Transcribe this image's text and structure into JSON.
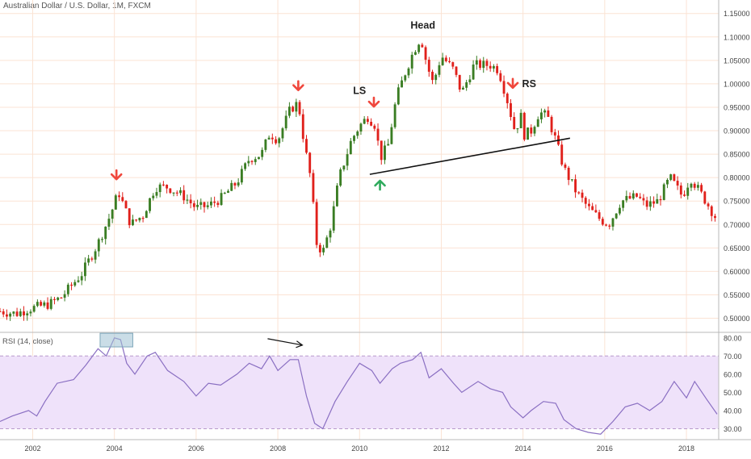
{
  "title": "Australian Dollar / U.S. Dollar, 1M, FXCM",
  "colors": {
    "up": "#3a7d23",
    "down": "#e0201b",
    "grid": "#fbe3d4",
    "rsi_line": "#8a6fc2",
    "rsi_band": "#efe2fa",
    "arrow_down": "#f0473c",
    "arrow_up": "#2eaa5c",
    "rsi_box": "#9fc1d4"
  },
  "chart_data": [
    {
      "type": "candlestick",
      "title": "Australian Dollar / U.S. Dollar, 1M, FXCM",
      "x_tick_labels": [
        "2002",
        "2004",
        "2006",
        "2008",
        "2010",
        "2012",
        "2014",
        "2016",
        "2018"
      ],
      "y_tick_labels": [
        "0.50000",
        "0.55000",
        "0.60000",
        "0.65000",
        "0.70000",
        "0.75000",
        "0.80000",
        "0.85000",
        "0.90000",
        "0.95000",
        "1.00000",
        "1.05000",
        "1.10000",
        "1.15000"
      ],
      "ylim": [
        0.47,
        1.165
      ],
      "xlim": [
        2001.2,
        2018.75
      ],
      "grid": true,
      "ohlc_anchors": [
        {
          "t": 2001.2,
          "c": 0.515
        },
        {
          "t": 2001.6,
          "c": 0.51
        },
        {
          "t": 2001.9,
          "c": 0.52
        },
        {
          "t": 2002.4,
          "c": 0.53
        },
        {
          "t": 2002.7,
          "c": 0.545
        },
        {
          "t": 2003.2,
          "c": 0.595
        },
        {
          "t": 2003.6,
          "c": 0.66
        },
        {
          "t": 2003.9,
          "c": 0.72
        },
        {
          "t": 2004.1,
          "c": 0.77
        },
        {
          "t": 2004.4,
          "c": 0.7
        },
        {
          "t": 2004.7,
          "c": 0.72
        },
        {
          "t": 2005.0,
          "c": 0.78
        },
        {
          "t": 2005.3,
          "c": 0.78
        },
        {
          "t": 2005.7,
          "c": 0.76
        },
        {
          "t": 2006.0,
          "c": 0.735
        },
        {
          "t": 2006.3,
          "c": 0.74
        },
        {
          "t": 2006.6,
          "c": 0.755
        },
        {
          "t": 2007.0,
          "c": 0.79
        },
        {
          "t": 2007.3,
          "c": 0.84
        },
        {
          "t": 2007.6,
          "c": 0.85
        },
        {
          "t": 2007.8,
          "c": 0.895
        },
        {
          "t": 2008.0,
          "c": 0.88
        },
        {
          "t": 2008.3,
          "c": 0.945
        },
        {
          "t": 2008.5,
          "c": 0.96
        },
        {
          "t": 2008.65,
          "c": 0.87
        },
        {
          "t": 2008.8,
          "c": 0.8
        },
        {
          "t": 2008.95,
          "c": 0.66
        },
        {
          "t": 2009.1,
          "c": 0.64
        },
        {
          "t": 2009.3,
          "c": 0.7
        },
        {
          "t": 2009.5,
          "c": 0.8
        },
        {
          "t": 2009.8,
          "c": 0.88
        },
        {
          "t": 2010.0,
          "c": 0.91
        },
        {
          "t": 2010.2,
          "c": 0.93
        },
        {
          "t": 2010.4,
          "c": 0.91
        },
        {
          "t": 2010.5,
          "c": 0.84
        },
        {
          "t": 2010.7,
          "c": 0.87
        },
        {
          "t": 2010.9,
          "c": 0.97
        },
        {
          "t": 2011.1,
          "c": 1.02
        },
        {
          "t": 2011.3,
          "c": 1.065
        },
        {
          "t": 2011.5,
          "c": 1.1
        },
        {
          "t": 2011.65,
          "c": 1.04
        },
        {
          "t": 2011.8,
          "c": 1.0
        },
        {
          "t": 2012.0,
          "c": 1.06
        },
        {
          "t": 2012.3,
          "c": 1.03
        },
        {
          "t": 2012.5,
          "c": 0.98
        },
        {
          "t": 2012.8,
          "c": 1.04
        },
        {
          "t": 2013.2,
          "c": 1.04
        },
        {
          "t": 2013.4,
          "c": 1.03
        },
        {
          "t": 2013.6,
          "c": 0.97
        },
        {
          "t": 2013.8,
          "c": 0.9
        },
        {
          "t": 2013.95,
          "c": 0.93
        },
        {
          "t": 2014.0,
          "c": 0.89
        },
        {
          "t": 2014.2,
          "c": 0.9
        },
        {
          "t": 2014.4,
          "c": 0.94
        },
        {
          "t": 2014.6,
          "c": 0.93
        },
        {
          "t": 2014.8,
          "c": 0.88
        },
        {
          "t": 2015.0,
          "c": 0.82
        },
        {
          "t": 2015.3,
          "c": 0.77
        },
        {
          "t": 2015.6,
          "c": 0.735
        },
        {
          "t": 2015.9,
          "c": 0.71
        },
        {
          "t": 2016.1,
          "c": 0.7
        },
        {
          "t": 2016.4,
          "c": 0.75
        },
        {
          "t": 2016.8,
          "c": 0.76
        },
        {
          "t": 2017.0,
          "c": 0.74
        },
        {
          "t": 2017.3,
          "c": 0.75
        },
        {
          "t": 2017.6,
          "c": 0.8
        },
        {
          "t": 2017.9,
          "c": 0.76
        },
        {
          "t": 2018.1,
          "c": 0.8
        },
        {
          "t": 2018.4,
          "c": 0.76
        },
        {
          "t": 2018.75,
          "c": 0.71
        }
      ],
      "pattern_labels": [
        "LS",
        "Head",
        "RS"
      ],
      "neckline": {
        "from": {
          "t": 2010.25,
          "price": 0.807
        },
        "to": {
          "t": 2015.15,
          "price": 0.884
        }
      },
      "arrows": [
        {
          "t": 2004.05,
          "price": 0.8,
          "direction": "down"
        },
        {
          "t": 2008.5,
          "price": 0.99,
          "direction": "down"
        },
        {
          "t": 2010.35,
          "price": 0.955,
          "direction": "down"
        },
        {
          "t": 2013.75,
          "price": 0.995,
          "direction": "down"
        },
        {
          "t": 2010.5,
          "price": 0.79,
          "direction": "up"
        }
      ]
    },
    {
      "type": "line",
      "title": "RSI (14, close)",
      "y_tick_labels": [
        "30.00",
        "40.00",
        "50.00",
        "60.00",
        "70.00",
        "80.00"
      ],
      "ylim": [
        24,
        83
      ],
      "band": [
        30,
        70
      ],
      "series": [
        {
          "values": [
            [
              2001.2,
              34
            ],
            [
              2001.5,
              37
            ],
            [
              2001.9,
              40
            ],
            [
              2002.1,
              37
            ],
            [
              2002.3,
              45
            ],
            [
              2002.6,
              55
            ],
            [
              2003.0,
              57
            ],
            [
              2003.3,
              65
            ],
            [
              2003.6,
              74
            ],
            [
              2003.8,
              70
            ],
            [
              2004.0,
              80
            ],
            [
              2004.15,
              79
            ],
            [
              2004.3,
              66
            ],
            [
              2004.5,
              60
            ],
            [
              2004.8,
              70
            ],
            [
              2005.0,
              72
            ],
            [
              2005.3,
              62
            ],
            [
              2005.7,
              56
            ],
            [
              2006.0,
              48
            ],
            [
              2006.3,
              55
            ],
            [
              2006.6,
              54
            ],
            [
              2007.0,
              60
            ],
            [
              2007.3,
              66
            ],
            [
              2007.6,
              63
            ],
            [
              2007.8,
              70
            ],
            [
              2008.0,
              62
            ],
            [
              2008.3,
              68
            ],
            [
              2008.5,
              68
            ],
            [
              2008.7,
              48
            ],
            [
              2008.9,
              33
            ],
            [
              2009.1,
              30
            ],
            [
              2009.4,
              45
            ],
            [
              2009.7,
              56
            ],
            [
              2010.0,
              66
            ],
            [
              2010.3,
              62
            ],
            [
              2010.5,
              55
            ],
            [
              2010.8,
              63
            ],
            [
              2011.0,
              66
            ],
            [
              2011.3,
              68
            ],
            [
              2011.5,
              72
            ],
            [
              2011.7,
              58
            ],
            [
              2012.0,
              63
            ],
            [
              2012.3,
              55
            ],
            [
              2012.5,
              50
            ],
            [
              2012.9,
              56
            ],
            [
              2013.2,
              52
            ],
            [
              2013.5,
              50
            ],
            [
              2013.7,
              42
            ],
            [
              2014.0,
              36
            ],
            [
              2014.2,
              40
            ],
            [
              2014.5,
              45
            ],
            [
              2014.8,
              44
            ],
            [
              2015.0,
              35
            ],
            [
              2015.3,
              30
            ],
            [
              2015.6,
              28
            ],
            [
              2015.9,
              27
            ],
            [
              2016.2,
              34
            ],
            [
              2016.5,
              42
            ],
            [
              2016.8,
              44
            ],
            [
              2017.1,
              40
            ],
            [
              2017.4,
              45
            ],
            [
              2017.7,
              56
            ],
            [
              2018.0,
              47
            ],
            [
              2018.2,
              56
            ],
            [
              2018.5,
              46
            ],
            [
              2018.75,
              38
            ]
          ]
        }
      ],
      "annotation": "bearish divergence arrow over RSI peaks 2007.8 → 2008.7",
      "highlight_box": {
        "from": 2003.65,
        "to": 2004.45
      }
    }
  ]
}
